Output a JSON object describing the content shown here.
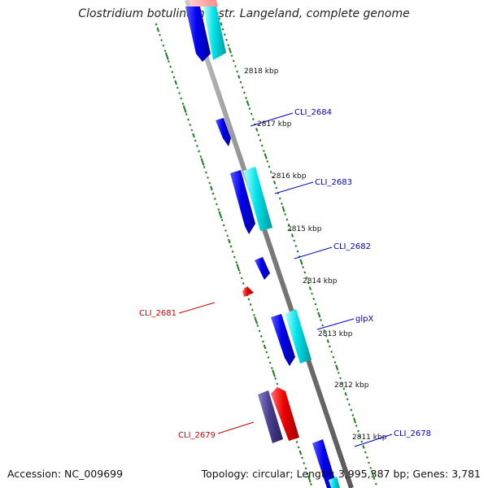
{
  "title": "Clostridium botulinum F str. Langeland, complete genome",
  "footer": {
    "accession": "Accession: NC_009699",
    "summary": "Topology: circular; Length: 3,995,387 bp; Genes: 3,781"
  },
  "colors": {
    "backbone": "#8c8c8c",
    "tick": "#1e7d1e",
    "forward_gene": "#0000ee",
    "forward_gene_alt": "#00d8e0",
    "reverse_gene": "#ee0000",
    "reverse_gene_alt": "#4a3f8f",
    "label_forward": "#0000cc",
    "label_reverse": "#cc0000"
  },
  "tick_labels": [
    {
      "text": "2818 kbp",
      "kbp": 2818
    },
    {
      "text": "2817 kbp",
      "kbp": 2817
    },
    {
      "text": "2816 kbp",
      "kbp": 2816
    },
    {
      "text": "2815 kbp",
      "kbp": 2815
    },
    {
      "text": "2814 kbp",
      "kbp": 2814
    },
    {
      "text": "2813 kbp",
      "kbp": 2813
    },
    {
      "text": "2812 kbp",
      "kbp": 2812
    },
    {
      "text": "2811 kbp",
      "kbp": 2811
    }
  ],
  "gene_labels": [
    {
      "text": "CLI_2684",
      "strand": "forward"
    },
    {
      "text": "CLI_2683",
      "strand": "forward"
    },
    {
      "text": "CLI_2682",
      "strand": "forward"
    },
    {
      "text": "glpX",
      "strand": "forward"
    },
    {
      "text": "CLI_2678",
      "strand": "forward"
    },
    {
      "text": "CLI_2681",
      "strand": "reverse"
    },
    {
      "text": "CLI_2679",
      "strand": "reverse"
    }
  ]
}
